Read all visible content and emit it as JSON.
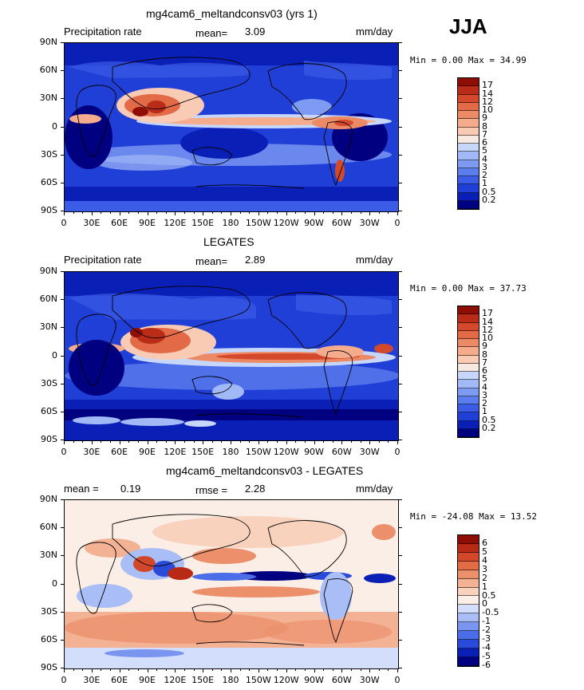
{
  "season": "JJA",
  "lat_labels": [
    "90N",
    "60N",
    "30N",
    "0",
    "30S",
    "60S",
    "90S"
  ],
  "lon_labels": [
    "0",
    "30E",
    "60E",
    "90E",
    "120E",
    "150E",
    "180",
    "150W",
    "120W",
    "90W",
    "60W",
    "30W",
    "0"
  ],
  "precip_colors": [
    "#000080",
    "#0a1fb5",
    "#1f3fd6",
    "#3a5ce6",
    "#5b7ded",
    "#7d9bf3",
    "#a2b9f7",
    "#c7d6fb",
    "#f5e9e1",
    "#f9cbb5",
    "#f4ac8c",
    "#ec8a66",
    "#e36a46",
    "#d4482b",
    "#b82c18",
    "#8e0d04"
  ],
  "diff_colors": [
    "#000080",
    "#0a1fb5",
    "#2a4ad9",
    "#4b6de7",
    "#7a95ef",
    "#a9bdf6",
    "#d2defb",
    "#fbeee6",
    "#f8d2bd",
    "#f3b294",
    "#ec906c",
    "#e36b45",
    "#d2462a",
    "#b82a16",
    "#8e0d04"
  ],
  "panels": [
    {
      "title": "mg4cam6_meltandconsv03 (yrs 1)",
      "left_label": "Precipitation rate",
      "stat_label": "mean=",
      "stat_value": "3.09",
      "extra_label": "",
      "extra_value": "",
      "units": "mm/day",
      "min_text": "Min =    0.00 Max =   34.99",
      "colorbar_labels": [
        "17",
        "14",
        "12",
        "10",
        "9",
        "8",
        "7",
        "6",
        "5",
        "4",
        "3",
        "2",
        "1",
        "0.5",
        "0.2"
      ]
    },
    {
      "title": "LEGATES",
      "left_label": "Precipitation rate",
      "stat_label": "mean=",
      "stat_value": "2.89",
      "extra_label": "",
      "extra_value": "",
      "units": "mm/day",
      "min_text": "Min =    0.00 Max =   37.73",
      "colorbar_labels": [
        "17",
        "14",
        "12",
        "10",
        "9",
        "8",
        "7",
        "6",
        "5",
        "4",
        "3",
        "2",
        "1",
        "0.5",
        "0.2"
      ]
    },
    {
      "title": "mg4cam6_meltandconsv03 - LEGATES",
      "left_label": "mean =",
      "stat_label": "",
      "stat_value": "0.19",
      "extra_label": "rmse =",
      "extra_value": "2.28",
      "units": "mm/day",
      "min_text": "Min = -24.08 Max =   13.52",
      "colorbar_labels": [
        "6",
        "5",
        "4",
        "3",
        "2",
        "1",
        "0.5",
        "0",
        "-0.5",
        "-1",
        "-2",
        "-3",
        "-4",
        "-5",
        "-6"
      ]
    }
  ],
  "chart_data": [
    {
      "type": "heatmap",
      "title": "mg4cam6_meltandconsv03 (yrs 1)",
      "variable": "Precipitation rate",
      "units": "mm/day",
      "mean": 3.09,
      "min": 0.0,
      "max": 34.99,
      "levels": [
        0.2,
        0.5,
        1,
        2,
        3,
        4,
        5,
        6,
        7,
        8,
        9,
        10,
        12,
        14,
        17
      ],
      "x_range": [
        0,
        360
      ],
      "y_range": [
        -90,
        90
      ]
    },
    {
      "type": "heatmap",
      "title": "LEGATES",
      "variable": "Precipitation rate",
      "units": "mm/day",
      "mean": 2.89,
      "min": 0.0,
      "max": 37.73,
      "levels": [
        0.2,
        0.5,
        1,
        2,
        3,
        4,
        5,
        6,
        7,
        8,
        9,
        10,
        12,
        14,
        17
      ],
      "x_range": [
        0,
        360
      ],
      "y_range": [
        -90,
        90
      ]
    },
    {
      "type": "heatmap",
      "title": "mg4cam6_meltandconsv03 - LEGATES",
      "units": "mm/day",
      "mean": 0.19,
      "rmse": 2.28,
      "min": -24.08,
      "max": 13.52,
      "levels": [
        -6,
        -5,
        -4,
        -3,
        -2,
        -1,
        -0.5,
        0,
        0.5,
        1,
        2,
        3,
        4,
        5,
        6
      ],
      "x_range": [
        0,
        360
      ],
      "y_range": [
        -90,
        90
      ]
    }
  ]
}
